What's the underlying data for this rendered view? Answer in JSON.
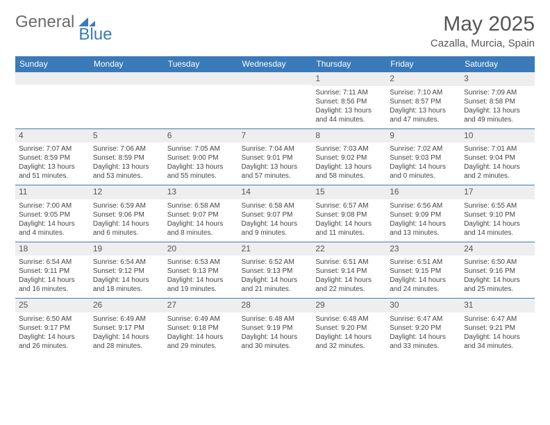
{
  "logo": {
    "text1": "General",
    "text2": "Blue"
  },
  "title": "May 2025",
  "location": "Cazalla, Murcia, Spain",
  "colors": {
    "header_bg": "#3a7ab8",
    "header_text": "#ffffff",
    "daynum_bg": "#eeeeee",
    "sep_border": "#3a7ab8",
    "logo_gray": "#6b6b6b",
    "logo_blue": "#3a7ab8"
  },
  "weekdays": [
    "Sunday",
    "Monday",
    "Tuesday",
    "Wednesday",
    "Thursday",
    "Friday",
    "Saturday"
  ],
  "weeks": [
    [
      null,
      null,
      null,
      null,
      {
        "n": "1",
        "sr": "7:11 AM",
        "ss": "8:56 PM",
        "dl": "13 hours and 44 minutes."
      },
      {
        "n": "2",
        "sr": "7:10 AM",
        "ss": "8:57 PM",
        "dl": "13 hours and 47 minutes."
      },
      {
        "n": "3",
        "sr": "7:09 AM",
        "ss": "8:58 PM",
        "dl": "13 hours and 49 minutes."
      }
    ],
    [
      {
        "n": "4",
        "sr": "7:07 AM",
        "ss": "8:59 PM",
        "dl": "13 hours and 51 minutes."
      },
      {
        "n": "5",
        "sr": "7:06 AM",
        "ss": "8:59 PM",
        "dl": "13 hours and 53 minutes."
      },
      {
        "n": "6",
        "sr": "7:05 AM",
        "ss": "9:00 PM",
        "dl": "13 hours and 55 minutes."
      },
      {
        "n": "7",
        "sr": "7:04 AM",
        "ss": "9:01 PM",
        "dl": "13 hours and 57 minutes."
      },
      {
        "n": "8",
        "sr": "7:03 AM",
        "ss": "9:02 PM",
        "dl": "13 hours and 58 minutes."
      },
      {
        "n": "9",
        "sr": "7:02 AM",
        "ss": "9:03 PM",
        "dl": "14 hours and 0 minutes."
      },
      {
        "n": "10",
        "sr": "7:01 AM",
        "ss": "9:04 PM",
        "dl": "14 hours and 2 minutes."
      }
    ],
    [
      {
        "n": "11",
        "sr": "7:00 AM",
        "ss": "9:05 PM",
        "dl": "14 hours and 4 minutes."
      },
      {
        "n": "12",
        "sr": "6:59 AM",
        "ss": "9:06 PM",
        "dl": "14 hours and 6 minutes."
      },
      {
        "n": "13",
        "sr": "6:58 AM",
        "ss": "9:07 PM",
        "dl": "14 hours and 8 minutes."
      },
      {
        "n": "14",
        "sr": "6:58 AM",
        "ss": "9:07 PM",
        "dl": "14 hours and 9 minutes."
      },
      {
        "n": "15",
        "sr": "6:57 AM",
        "ss": "9:08 PM",
        "dl": "14 hours and 11 minutes."
      },
      {
        "n": "16",
        "sr": "6:56 AM",
        "ss": "9:09 PM",
        "dl": "14 hours and 13 minutes."
      },
      {
        "n": "17",
        "sr": "6:55 AM",
        "ss": "9:10 PM",
        "dl": "14 hours and 14 minutes."
      }
    ],
    [
      {
        "n": "18",
        "sr": "6:54 AM",
        "ss": "9:11 PM",
        "dl": "14 hours and 16 minutes."
      },
      {
        "n": "19",
        "sr": "6:54 AM",
        "ss": "9:12 PM",
        "dl": "14 hours and 18 minutes."
      },
      {
        "n": "20",
        "sr": "6:53 AM",
        "ss": "9:13 PM",
        "dl": "14 hours and 19 minutes."
      },
      {
        "n": "21",
        "sr": "6:52 AM",
        "ss": "9:13 PM",
        "dl": "14 hours and 21 minutes."
      },
      {
        "n": "22",
        "sr": "6:51 AM",
        "ss": "9:14 PM",
        "dl": "14 hours and 22 minutes."
      },
      {
        "n": "23",
        "sr": "6:51 AM",
        "ss": "9:15 PM",
        "dl": "14 hours and 24 minutes."
      },
      {
        "n": "24",
        "sr": "6:50 AM",
        "ss": "9:16 PM",
        "dl": "14 hours and 25 minutes."
      }
    ],
    [
      {
        "n": "25",
        "sr": "6:50 AM",
        "ss": "9:17 PM",
        "dl": "14 hours and 26 minutes."
      },
      {
        "n": "26",
        "sr": "6:49 AM",
        "ss": "9:17 PM",
        "dl": "14 hours and 28 minutes."
      },
      {
        "n": "27",
        "sr": "6:49 AM",
        "ss": "9:18 PM",
        "dl": "14 hours and 29 minutes."
      },
      {
        "n": "28",
        "sr": "6:48 AM",
        "ss": "9:19 PM",
        "dl": "14 hours and 30 minutes."
      },
      {
        "n": "29",
        "sr": "6:48 AM",
        "ss": "9:20 PM",
        "dl": "14 hours and 32 minutes."
      },
      {
        "n": "30",
        "sr": "6:47 AM",
        "ss": "9:20 PM",
        "dl": "14 hours and 33 minutes."
      },
      {
        "n": "31",
        "sr": "6:47 AM",
        "ss": "9:21 PM",
        "dl": "14 hours and 34 minutes."
      }
    ]
  ],
  "labels": {
    "sunrise": "Sunrise:",
    "sunset": "Sunset:",
    "daylight": "Daylight:"
  }
}
